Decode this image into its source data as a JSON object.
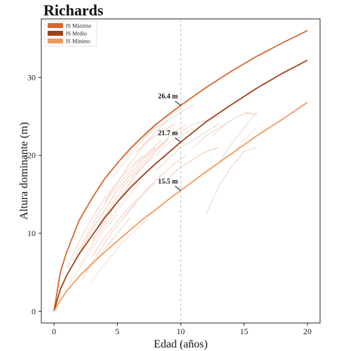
{
  "chart_data": {
    "type": "line",
    "title": "Richards",
    "xlabel": "Edad (años)",
    "ylabel": "Altura dominante (m)",
    "xlim": [
      -1,
      21
    ],
    "ylim": [
      -1.5,
      37.5
    ],
    "xticks": [
      "0",
      "5",
      "10",
      "15",
      "20"
    ],
    "yticks": [
      "0",
      "10",
      "20",
      "30"
    ],
    "xtick_values": [
      0,
      5,
      10,
      15,
      20
    ],
    "ytick_values": [
      0,
      10,
      20,
      30
    ],
    "grid": false,
    "legend_position": "top-left",
    "reference_line_x": 10,
    "series": [
      {
        "name": "IS Máximo",
        "color": "#d4672c",
        "x": [
          0,
          0.5,
          1,
          2,
          3,
          4,
          5,
          6,
          7,
          8,
          9,
          10,
          12,
          14,
          16,
          18,
          20
        ],
        "y": [
          0,
          5.0,
          7.6,
          11.7,
          14.5,
          17.0,
          19.0,
          20.8,
          22.4,
          23.9,
          25.2,
          26.4,
          28.7,
          30.8,
          32.7,
          34.4,
          36.0
        ]
      },
      {
        "name": "IS Medio",
        "color": "#a0401a",
        "x": [
          0,
          0.5,
          1,
          2,
          3,
          4,
          5,
          6,
          7,
          8,
          9,
          10,
          12,
          14,
          16,
          18,
          20
        ],
        "y": [
          0,
          2.8,
          4.6,
          7.4,
          9.7,
          12.0,
          14.0,
          15.8,
          17.4,
          18.9,
          20.3,
          21.7,
          24.3,
          26.5,
          28.6,
          30.5,
          32.2
        ]
      },
      {
        "name": "IS Mínimo",
        "color": "#ee9a5e",
        "x": [
          0,
          0.5,
          1,
          2,
          3,
          4,
          5,
          6,
          7,
          8,
          9,
          10,
          12,
          14,
          16,
          18,
          20
        ],
        "y": [
          0,
          1.4,
          2.6,
          4.5,
          6.1,
          7.6,
          9.0,
          10.4,
          11.8,
          13.0,
          14.3,
          15.5,
          17.9,
          20.2,
          22.5,
          24.6,
          26.8
        ]
      }
    ],
    "annotations": [
      {
        "x": 10,
        "y": 26.4,
        "text": "26.4 m"
      },
      {
        "x": 10,
        "y": 21.7,
        "text": "21.7 m"
      },
      {
        "x": 10,
        "y": 15.5,
        "text": "15.5 m"
      }
    ],
    "observed_trajectories": [
      [
        [
          1.0,
          5.5
        ],
        [
          2.0,
          9.0
        ],
        [
          3.0,
          12.0
        ],
        [
          4.0,
          14.5
        ],
        [
          5.0,
          16.5
        ],
        [
          6.0,
          18.5
        ],
        [
          7.0,
          20.0
        ]
      ],
      [
        [
          1.5,
          6.5
        ],
        [
          2.5,
          9.5
        ],
        [
          3.5,
          12.5
        ],
        [
          4.5,
          15.0
        ],
        [
          5.5,
          17.0
        ],
        [
          6.5,
          19.0
        ],
        [
          7.5,
          20.5
        ],
        [
          8.5,
          22.0
        ]
      ],
      [
        [
          2.0,
          6.0
        ],
        [
          3.0,
          8.5
        ],
        [
          4.0,
          11.0
        ],
        [
          5.0,
          13.0
        ],
        [
          6.0,
          15.0
        ],
        [
          7.0,
          17.0
        ]
      ],
      [
        [
          2.5,
          5.0
        ],
        [
          3.5,
          7.5
        ],
        [
          4.5,
          10.0
        ],
        [
          5.5,
          12.0
        ],
        [
          6.5,
          14.0
        ]
      ],
      [
        [
          3.0,
          9.0
        ],
        [
          4.0,
          11.5
        ],
        [
          5.0,
          14.0
        ],
        [
          6.0,
          16.5
        ],
        [
          7.0,
          18.5
        ],
        [
          8.0,
          20.5
        ],
        [
          9.0,
          22.0
        ]
      ],
      [
        [
          3.5,
          11.0
        ],
        [
          4.5,
          13.5
        ],
        [
          5.5,
          16.0
        ],
        [
          6.5,
          18.0
        ],
        [
          7.5,
          20.0
        ],
        [
          8.5,
          21.5
        ],
        [
          9.5,
          23.0
        ],
        [
          10.5,
          24.0
        ]
      ],
      [
        [
          4.0,
          14.0
        ],
        [
          5.0,
          16.5
        ],
        [
          6.0,
          19.0
        ],
        [
          7.0,
          21.0
        ],
        [
          8.0,
          23.0
        ],
        [
          9.0,
          24.5
        ]
      ],
      [
        [
          4.5,
          17.0
        ],
        [
          5.5,
          19.0
        ],
        [
          6.5,
          21.0
        ],
        [
          7.5,
          23.0
        ],
        [
          8.5,
          24.5
        ]
      ],
      [
        [
          5.0,
          19.0
        ],
        [
          6.0,
          21.0
        ],
        [
          7.0,
          22.5
        ],
        [
          8.0,
          24.0
        ],
        [
          9.0,
          25.0
        ],
        [
          10.0,
          26.0
        ]
      ],
      [
        [
          2.0,
          7.5
        ],
        [
          3.0,
          10.5
        ],
        [
          4.0,
          13.0
        ],
        [
          5.0,
          15.5
        ],
        [
          6.0,
          17.5
        ],
        [
          7.0,
          19.5
        ],
        [
          8.0,
          21.0
        ]
      ],
      [
        [
          3.0,
          7.0
        ],
        [
          4.0,
          9.5
        ],
        [
          5.0,
          11.5
        ],
        [
          6.0,
          13.5
        ],
        [
          7.0,
          15.0
        ],
        [
          8.0,
          16.5
        ]
      ],
      [
        [
          2.2,
          4.0
        ],
        [
          3.0,
          6.0
        ],
        [
          4.0,
          8.0
        ],
        [
          5.0,
          10.0
        ],
        [
          6.0,
          12.0
        ]
      ],
      [
        [
          6.0,
          17.0
        ],
        [
          7.0,
          18.5
        ],
        [
          8.0,
          20.0
        ],
        [
          9.0,
          21.5
        ],
        [
          10.0,
          22.5
        ],
        [
          11.0,
          23.5
        ]
      ],
      [
        [
          8.0,
          18.0
        ],
        [
          9.0,
          19.5
        ],
        [
          10.0,
          21.0
        ],
        [
          11.0,
          22.0
        ],
        [
          12.0,
          23.0
        ],
        [
          13.0,
          24.0
        ]
      ],
      [
        [
          9.0,
          17.0
        ],
        [
          10.0,
          18.5
        ],
        [
          11.0,
          19.5
        ],
        [
          12.0,
          20.5
        ],
        [
          13.0,
          21.0
        ]
      ],
      [
        [
          12.0,
          12.5
        ],
        [
          13.0,
          16.0
        ],
        [
          14.0,
          18.5
        ],
        [
          15.0,
          20.5
        ],
        [
          16.0,
          21.0
        ]
      ],
      [
        [
          13.0,
          19.0
        ],
        [
          14.0,
          21.5
        ],
        [
          15.0,
          23.5
        ],
        [
          16.0,
          25.5
        ]
      ],
      [
        [
          14.0,
          20.0
        ],
        [
          15.0,
          22.0
        ],
        [
          16.0,
          23.5
        ]
      ],
      [
        [
          12.5,
          22.5
        ],
        [
          13.5,
          24.0
        ],
        [
          14.5,
          25.0
        ],
        [
          15.5,
          25.5
        ]
      ],
      [
        [
          15.0,
          25.5
        ],
        [
          16.0,
          25.2
        ]
      ],
      [
        [
          5.5,
          12.0
        ],
        [
          6.5,
          14.0
        ],
        [
          7.5,
          16.0
        ],
        [
          8.5,
          17.5
        ],
        [
          9.5,
          19.0
        ],
        [
          10.5,
          20.0
        ]
      ],
      [
        [
          4.0,
          12.0
        ],
        [
          5.0,
          14.0
        ],
        [
          6.0,
          16.0
        ],
        [
          7.0,
          17.5
        ],
        [
          8.0,
          19.0
        ],
        [
          9.0,
          20.0
        ]
      ],
      [
        [
          1.2,
          3.5
        ],
        [
          2.0,
          5.5
        ],
        [
          3.0,
          8.0
        ],
        [
          4.0,
          10.5
        ],
        [
          5.0,
          12.5
        ]
      ],
      [
        [
          7.0,
          22.0
        ],
        [
          8.0,
          23.5
        ],
        [
          9.0,
          24.5
        ],
        [
          10.0,
          25.5
        ],
        [
          11.0,
          26.5
        ]
      ],
      [
        [
          6.5,
          20.5
        ],
        [
          7.5,
          22.0
        ],
        [
          8.5,
          23.0
        ],
        [
          9.5,
          24.0
        ]
      ],
      [
        [
          10.0,
          23.0
        ],
        [
          11.0,
          24.0
        ],
        [
          12.0,
          24.5
        ],
        [
          13.0,
          25.0
        ]
      ],
      [
        [
          11.0,
          21.0
        ],
        [
          12.0,
          22.5
        ],
        [
          13.0,
          23.5
        ],
        [
          14.0,
          24.5
        ]
      ],
      [
        [
          2.8,
          3.5
        ],
        [
          3.5,
          5.0
        ],
        [
          4.5,
          7.0
        ],
        [
          5.5,
          9.0
        ],
        [
          6.5,
          10.5
        ],
        [
          7.5,
          12.0
        ]
      ]
    ]
  }
}
